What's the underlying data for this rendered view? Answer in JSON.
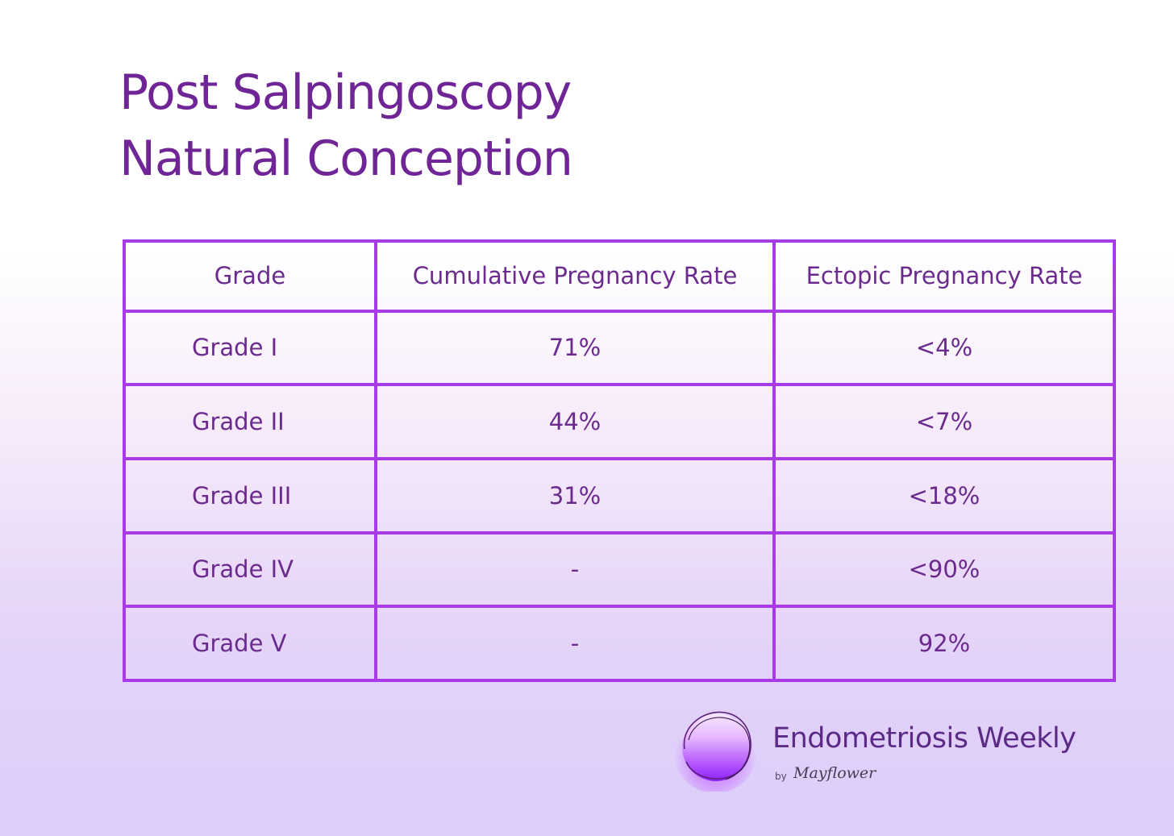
{
  "title": {
    "line1": "Post Salpingoscopy",
    "line2": "Natural Conception"
  },
  "table": {
    "headers": [
      "Grade",
      "Cumulative Pregnancy Rate",
      "Ectopic Pregnancy Rate"
    ],
    "rows": [
      [
        "Grade I",
        "71%",
        "<4%"
      ],
      [
        "Grade II",
        "44%",
        "<7%"
      ],
      [
        "Grade III",
        "31%",
        "<18%"
      ],
      [
        "Grade IV",
        "-",
        "<90%"
      ],
      [
        "Grade V",
        "-",
        "92%"
      ]
    ]
  },
  "brand": {
    "name": "Endometriosis Weekly",
    "by": "by",
    "signature": "Mayflower"
  },
  "colors": {
    "title": "#6f2596",
    "table_border": "#a93ae8",
    "table_text": "#6a2a8e",
    "logo": "#b44dff"
  },
  "icons": {
    "logo": "purple-orb-logo-icon"
  }
}
